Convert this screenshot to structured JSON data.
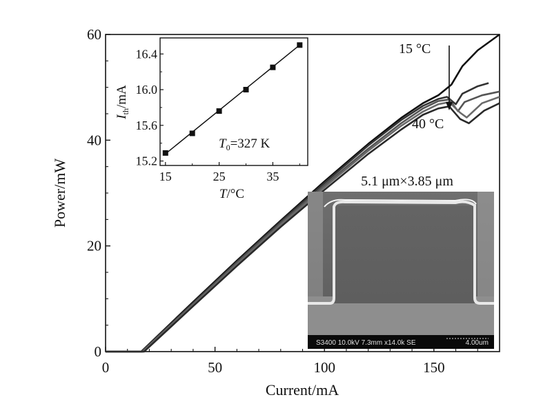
{
  "chart_data": [
    {
      "type": "line",
      "title": "",
      "xlabel": "Current/mA",
      "ylabel": "Power/mW",
      "xlim": [
        0,
        180
      ],
      "ylim": [
        0,
        60
      ],
      "xticks": [
        "0",
        "50",
        "100",
        "150"
      ],
      "xtick_values": [
        0,
        50,
        100,
        150
      ],
      "yticks": [
        "0",
        "20",
        "40",
        "60"
      ],
      "ytick_values": [
        0,
        20,
        40,
        60
      ],
      "grid": false,
      "annotations": {
        "top_temp": "15 °C",
        "bottom_temp": "40 °C"
      },
      "series": [
        {
          "color": "#101010",
          "points": [
            [
              0,
              0
            ],
            [
              16.3,
              0
            ],
            [
              40,
              9.4
            ],
            [
              60,
              17.2
            ],
            [
              80,
              24.8
            ],
            [
              100,
              32.2
            ],
            [
              120,
              39.3
            ],
            [
              135,
              44.2
            ],
            [
              145,
              47.0
            ],
            [
              152,
              48.5
            ],
            [
              158,
              50.5
            ],
            [
              163,
              54.0
            ],
            [
              170,
              57.0
            ],
            [
              180,
              60.5
            ]
          ]
        },
        {
          "color": "#333333",
          "points": [
            [
              0,
              0
            ],
            [
              16.5,
              0
            ],
            [
              40,
              9.2
            ],
            [
              60,
              17.0
            ],
            [
              80,
              24.6
            ],
            [
              100,
              31.9
            ],
            [
              120,
              39.0
            ],
            [
              135,
              43.8
            ],
            [
              145,
              46.5
            ],
            [
              152,
              47.8
            ],
            [
              156,
              48.2
            ],
            [
              160,
              46.8
            ],
            [
              163,
              48.8
            ],
            [
              170,
              50.2
            ],
            [
              175,
              50.8
            ]
          ]
        },
        {
          "color": "#555555",
          "points": [
            [
              0,
              0
            ],
            [
              16.8,
              0
            ],
            [
              40,
              9.0
            ],
            [
              60,
              16.8
            ],
            [
              80,
              24.3
            ],
            [
              100,
              31.5
            ],
            [
              120,
              38.4
            ],
            [
              135,
              43.2
            ],
            [
              145,
              46.0
            ],
            [
              152,
              47.4
            ],
            [
              157,
              47.7
            ],
            [
              161,
              45.5
            ],
            [
              164,
              47.2
            ],
            [
              172,
              48.5
            ],
            [
              180,
              49.2
            ]
          ]
        },
        {
          "color": "#6a6a6a",
          "points": [
            [
              0,
              0
            ],
            [
              17.2,
              0
            ],
            [
              40,
              8.8
            ],
            [
              60,
              16.5
            ],
            [
              80,
              24.0
            ],
            [
              100,
              31.1
            ],
            [
              120,
              38.0
            ],
            [
              135,
              42.7
            ],
            [
              145,
              45.4
            ],
            [
              152,
              46.8
            ],
            [
              157,
              47.2
            ],
            [
              162,
              45.2
            ],
            [
              165,
              44.3
            ],
            [
              172,
              47.0
            ],
            [
              180,
              48.2
            ]
          ]
        },
        {
          "color": "#2a2a2a",
          "points": [
            [
              0,
              0
            ],
            [
              17.6,
              0
            ],
            [
              40,
              8.6
            ],
            [
              60,
              16.2
            ],
            [
              80,
              23.6
            ],
            [
              100,
              30.6
            ],
            [
              120,
              37.4
            ],
            [
              135,
              42.0
            ],
            [
              145,
              44.8
            ],
            [
              152,
              46.0
            ],
            [
              157,
              46.4
            ],
            [
              162,
              44.0
            ],
            [
              166,
              43.2
            ],
            [
              173,
              45.6
            ],
            [
              180,
              47.0
            ]
          ]
        }
      ]
    },
    {
      "type": "scatter",
      "title": "",
      "xlabel": "T/°C",
      "ylabel": "I_th/mA",
      "xlim": [
        14,
        41.5
      ],
      "ylim": [
        15.15,
        16.58
      ],
      "xticks": [
        "15",
        "25",
        "35"
      ],
      "xtick_values": [
        15,
        25,
        35
      ],
      "yticks": [
        "15.2",
        "15.6",
        "16.0",
        "16.4"
      ],
      "ytick_values": [
        15.2,
        15.6,
        16.0,
        16.4
      ],
      "points": [
        [
          15,
          15.29
        ],
        [
          20,
          15.51
        ],
        [
          25,
          15.76
        ],
        [
          30,
          16.0
        ],
        [
          35,
          16.25
        ],
        [
          40,
          16.5
        ]
      ],
      "fit_line": [
        [
          15,
          15.28
        ],
        [
          40,
          16.5
        ]
      ],
      "annotation": "T0=327 K",
      "annotation_parts": {
        "var": "T",
        "sub": "0",
        "rest": "=327 K"
      },
      "ylabel_parts": {
        "var": "I",
        "sub": "th",
        "rest": "/mA"
      },
      "xlabel_parts": {
        "var": "T",
        "rest": "/°C"
      }
    }
  ],
  "sem_image": {
    "caption": "5.1 μm×3.85 μm",
    "info_bar": "S3400 10.0kV 7.3mm x14.0k SE",
    "scale_text": "4.00um"
  }
}
